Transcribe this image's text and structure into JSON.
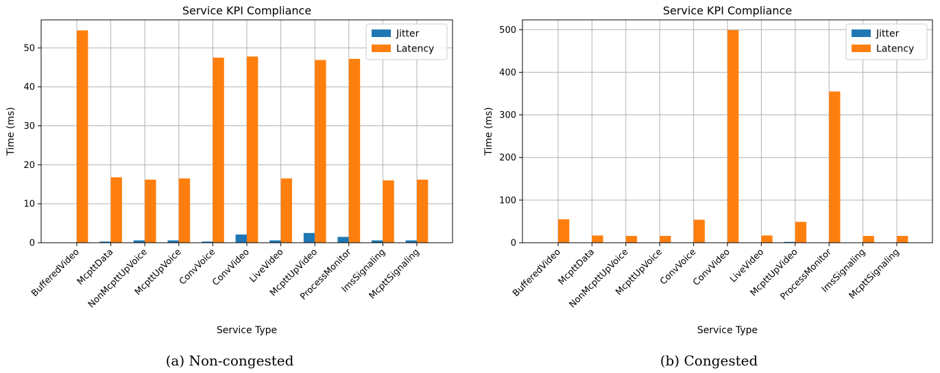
{
  "chart_data": [
    {
      "type": "bar",
      "title": "Service KPI Compliance",
      "xlabel": "Service Type",
      "ylabel": "Time (ms)",
      "caption": "(a) Non-congested",
      "categories": [
        "BufferedVideo",
        "McpttData",
        "NonMcpttUpVoice",
        "McpttUpVoice",
        "ConvVoice",
        "ConvVideo",
        "LiveVideo",
        "McpttUpVideo",
        "ProcessMonitor",
        "ImsSignaling",
        "McpttSignaling"
      ],
      "series": [
        {
          "name": "Jitter",
          "color": "#1f77b4",
          "values": [
            0,
            0.3,
            0.6,
            0.6,
            0.3,
            2.1,
            0.6,
            2.5,
            1.5,
            0.6,
            0.6
          ]
        },
        {
          "name": "Latency",
          "color": "#ff7f0e",
          "values": [
            54.5,
            16.8,
            16.2,
            16.5,
            47.5,
            47.8,
            16.5,
            46.9,
            47.2,
            16.0,
            16.2
          ]
        }
      ],
      "ylim": [
        0,
        57.2
      ],
      "yticks": [
        0,
        10,
        20,
        30,
        40,
        50
      ],
      "grid": true,
      "legend": "top-right"
    },
    {
      "type": "bar",
      "title": "Service KPI Compliance",
      "xlabel": "Service Type",
      "ylabel": "Time (ms)",
      "caption": "(b) Congested",
      "categories": [
        "BufferedVideo",
        "McpttData",
        "NonMcpttUpVoice",
        "McpttUpVoice",
        "ConvVoice",
        "ConvVideo",
        "LiveVideo",
        "McpttUpVideo",
        "ProcessMonitor",
        "ImsSignaling",
        "McpttSignaling"
      ],
      "series": [
        {
          "name": "Jitter",
          "color": "#1f77b4",
          "values": [
            0,
            0,
            0,
            0,
            0,
            0,
            0,
            2,
            0,
            0,
            0
          ]
        },
        {
          "name": "Latency",
          "color": "#ff7f0e",
          "values": [
            55,
            17,
            16,
            16,
            54,
            499,
            17,
            49,
            355,
            16,
            16
          ]
        }
      ],
      "ylim": [
        0,
        523
      ],
      "yticks": [
        0,
        100,
        200,
        300,
        400,
        500
      ],
      "grid": true,
      "legend": "top-right"
    }
  ]
}
